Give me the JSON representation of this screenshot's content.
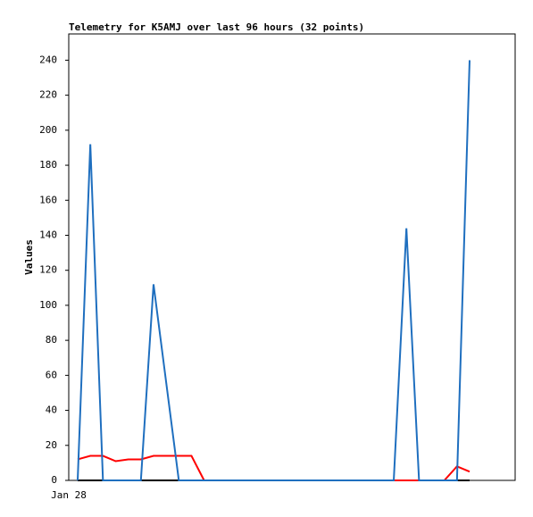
{
  "chart_data": {
    "type": "line",
    "title": "Telemetry for K5AMJ over last 96 hours (32 points)",
    "y_label": "Values",
    "categories": [
      "Jan 28",
      null,
      null,
      null,
      null,
      null,
      null,
      null,
      null,
      null,
      null,
      null,
      null,
      null,
      null,
      null,
      null,
      null,
      null,
      null,
      null,
      null,
      null,
      null,
      null,
      null,
      null,
      null,
      null,
      null,
      null,
      null
    ],
    "series": [
      {
        "color": "#000000",
        "values": [
          0,
          0,
          0,
          0,
          0,
          0,
          0,
          0,
          0,
          0,
          0,
          0,
          0,
          0,
          0,
          0,
          0,
          0,
          0,
          0,
          0,
          0,
          0,
          0,
          0,
          0,
          0,
          0,
          0,
          0,
          0,
          0
        ]
      },
      {
        "color": "#ff0000",
        "values": [
          12,
          14,
          14,
          11,
          12,
          12,
          14,
          14,
          14,
          14,
          0,
          0,
          0,
          0,
          0,
          0,
          0,
          0,
          0,
          0,
          0,
          0,
          0,
          0,
          0,
          0,
          0,
          0,
          0,
          0,
          8,
          5
        ]
      },
      {
        "color": "#1f6fbf",
        "values": [
          0,
          192,
          0,
          0,
          0,
          0,
          112,
          56,
          0,
          0,
          0,
          0,
          0,
          0,
          0,
          0,
          0,
          0,
          0,
          0,
          0,
          0,
          0,
          0,
          0,
          0,
          144,
          0,
          0,
          0,
          0,
          240
        ]
      }
    ],
    "ylim": [
      0,
      255
    ],
    "yticks": [
      0,
      20,
      40,
      60,
      80,
      100,
      120,
      140,
      160,
      180,
      200,
      220,
      240
    ]
  }
}
